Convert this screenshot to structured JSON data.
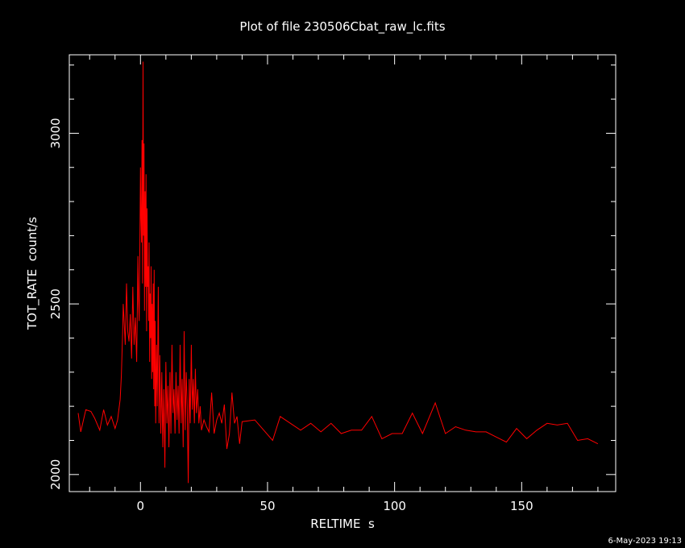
{
  "chart_data": {
    "type": "line",
    "title": "Plot of file 230506Cbat_raw_lc.fits",
    "xlabel": "RELTIME  s",
    "ylabel": "TOT_RATE  count/s",
    "timestamp": "6-May-2023 19:13",
    "xlim": [
      -28,
      187
    ],
    "ylim": [
      1950,
      3230
    ],
    "x_ticks": [
      0,
      50,
      100,
      150
    ],
    "y_ticks": [
      2000,
      2500,
      3000
    ],
    "x_minor_step": 10,
    "y_minor_step": 100,
    "grid": false,
    "colors": {
      "background": "#000000",
      "axes": "#ffffff",
      "series": "#ff0000"
    },
    "series": [
      {
        "values": [
          [
            -24.5,
            2180
          ],
          [
            -23.5,
            2125
          ],
          [
            -21.5,
            2190
          ],
          [
            -19.5,
            2185
          ],
          [
            -18,
            2165
          ],
          [
            -16,
            2130
          ],
          [
            -14.5,
            2190
          ],
          [
            -13,
            2145
          ],
          [
            -11.5,
            2170
          ],
          [
            -10,
            2135
          ],
          [
            -9,
            2160
          ],
          [
            -8,
            2220
          ],
          [
            -7.5,
            2290
          ],
          [
            -7,
            2420
          ],
          [
            -6.8,
            2500
          ],
          [
            -6.5,
            2460
          ],
          [
            -6,
            2380
          ],
          [
            -5.5,
            2560
          ],
          [
            -5,
            2420
          ],
          [
            -4.5,
            2390
          ],
          [
            -4,
            2470
          ],
          [
            -3.5,
            2340
          ],
          [
            -3,
            2550
          ],
          [
            -2.5,
            2380
          ],
          [
            -2,
            2460
          ],
          [
            -1.5,
            2330
          ],
          [
            -1.2,
            2500
          ],
          [
            -1,
            2640
          ],
          [
            -0.8,
            2520
          ],
          [
            -0.5,
            2450
          ],
          [
            -0.3,
            2620
          ],
          [
            0,
            2900
          ],
          [
            0.2,
            2750
          ],
          [
            0.4,
            2680
          ],
          [
            0.6,
            2980
          ],
          [
            0.8,
            2560
          ],
          [
            1,
            3210
          ],
          [
            1.2,
            2700
          ],
          [
            1.4,
            2970
          ],
          [
            1.6,
            2480
          ],
          [
            1.8,
            2830
          ],
          [
            2,
            2550
          ],
          [
            2.2,
            2880
          ],
          [
            2.4,
            2420
          ],
          [
            2.6,
            2780
          ],
          [
            2.8,
            2550
          ],
          [
            3,
            2610
          ],
          [
            3.2,
            2450
          ],
          [
            3.4,
            2680
          ],
          [
            3.6,
            2330
          ],
          [
            3.8,
            2530
          ],
          [
            4,
            2400
          ],
          [
            4.2,
            2610
          ],
          [
            4.4,
            2280
          ],
          [
            4.6,
            2500
          ],
          [
            4.8,
            2300
          ],
          [
            5,
            2560
          ],
          [
            5.2,
            2250
          ],
          [
            5.4,
            2600
          ],
          [
            5.6,
            2200
          ],
          [
            5.8,
            2450
          ],
          [
            6,
            2150
          ],
          [
            6.3,
            2380
          ],
          [
            6.6,
            2200
          ],
          [
            7,
            2550
          ],
          [
            7.3,
            2150
          ],
          [
            7.6,
            2350
          ],
          [
            8,
            2120
          ],
          [
            8.4,
            2300
          ],
          [
            8.8,
            2080
          ],
          [
            9.2,
            2250
          ],
          [
            9.6,
            2020
          ],
          [
            10,
            2330
          ],
          [
            10.4,
            2150
          ],
          [
            10.8,
            2260
          ],
          [
            11.2,
            2080
          ],
          [
            11.6,
            2300
          ],
          [
            12,
            2120
          ],
          [
            12.4,
            2380
          ],
          [
            12.8,
            2180
          ],
          [
            13.2,
            2250
          ],
          [
            13.6,
            2120
          ],
          [
            14,
            2300
          ],
          [
            14.4,
            2160
          ],
          [
            14.8,
            2260
          ],
          [
            15.2,
            2120
          ],
          [
            15.6,
            2380
          ],
          [
            16,
            2150
          ],
          [
            16.4,
            2280
          ],
          [
            16.8,
            2080
          ],
          [
            17.2,
            2420
          ],
          [
            17.6,
            2130
          ],
          [
            18,
            2300
          ],
          [
            18.4,
            2200
          ],
          [
            18.8,
            1975
          ],
          [
            19.2,
            2280
          ],
          [
            19.6,
            2150
          ],
          [
            20,
            2380
          ],
          [
            20.4,
            2190
          ],
          [
            20.8,
            2280
          ],
          [
            21.2,
            2150
          ],
          [
            21.6,
            2310
          ],
          [
            22,
            2180
          ],
          [
            22.5,
            2250
          ],
          [
            23,
            2150
          ],
          [
            23.5,
            2200
          ],
          [
            24,
            2130
          ],
          [
            25,
            2160
          ],
          [
            26,
            2140
          ],
          [
            27,
            2125
          ],
          [
            28,
            2240
          ],
          [
            29,
            2120
          ],
          [
            30,
            2160
          ],
          [
            31,
            2180
          ],
          [
            32,
            2150
          ],
          [
            33,
            2205
          ],
          [
            34,
            2075
          ],
          [
            35,
            2120
          ],
          [
            36,
            2240
          ],
          [
            37,
            2150
          ],
          [
            38,
            2170
          ],
          [
            39,
            2090
          ],
          [
            40,
            2155
          ],
          [
            45,
            2160
          ],
          [
            52,
            2100
          ],
          [
            55,
            2170
          ],
          [
            59,
            2150
          ],
          [
            63,
            2130
          ],
          [
            67,
            2150
          ],
          [
            71,
            2125
          ],
          [
            75,
            2150
          ],
          [
            79,
            2120
          ],
          [
            83,
            2130
          ],
          [
            87,
            2130
          ],
          [
            91,
            2170
          ],
          [
            95,
            2105
          ],
          [
            99,
            2120
          ],
          [
            103,
            2120
          ],
          [
            107,
            2180
          ],
          [
            111,
            2120
          ],
          [
            116,
            2210
          ],
          [
            120,
            2120
          ],
          [
            124,
            2140
          ],
          [
            128,
            2130
          ],
          [
            132,
            2125
          ],
          [
            136,
            2125
          ],
          [
            140,
            2110
          ],
          [
            144,
            2095
          ],
          [
            148,
            2135
          ],
          [
            152,
            2105
          ],
          [
            156,
            2130
          ],
          [
            160,
            2150
          ],
          [
            164,
            2145
          ],
          [
            168,
            2150
          ],
          [
            172,
            2100
          ],
          [
            176,
            2105
          ],
          [
            180,
            2090
          ]
        ]
      }
    ]
  }
}
